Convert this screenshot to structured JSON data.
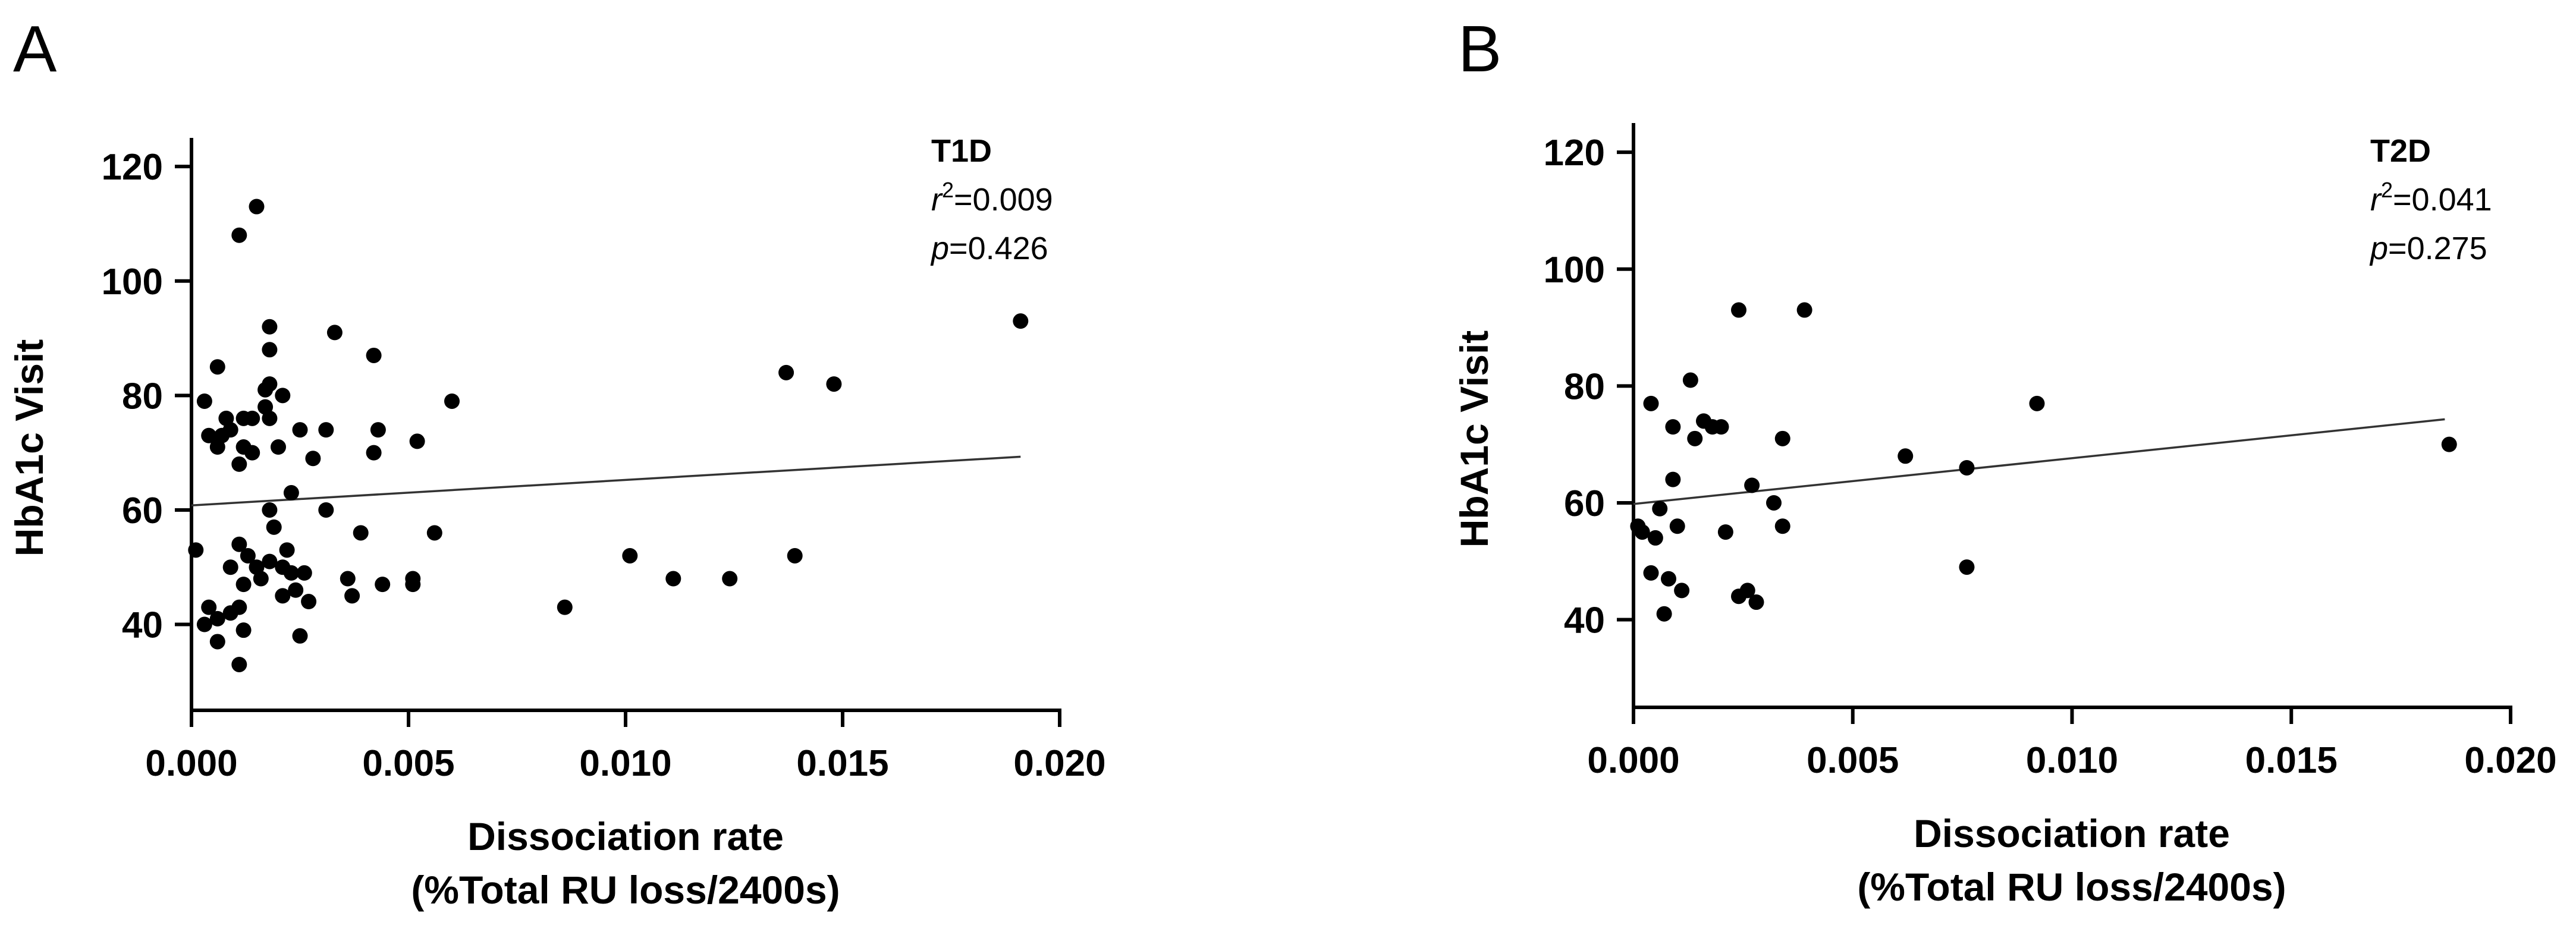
{
  "chart_data": [
    {
      "type": "scatter",
      "panel_label": "A",
      "xlabel_line1": "Dissociation rate",
      "xlabel_line2": "(%Total RU loss/2400s)",
      "ylabel": "HbA1c Visit",
      "xlim": [
        0.0,
        0.02
      ],
      "ylim": [
        25,
        125
      ],
      "xticks": [
        0.0,
        0.005,
        0.01,
        0.015,
        0.02
      ],
      "xtick_labels": [
        "0.000",
        "0.005",
        "0.010",
        "0.015",
        "0.020"
      ],
      "yticks": [
        40,
        60,
        80,
        100,
        120
      ],
      "ytick_labels": [
        "40",
        "60",
        "80",
        "100",
        "120"
      ],
      "annotation": {
        "title": "T1D",
        "r2_prefix": "r",
        "r2_value": "=0.009",
        "p_prefix": "p",
        "p_value": "=0.426"
      },
      "regression": {
        "x0": 0.0,
        "y0": 60.8,
        "x1": 0.0191,
        "y1": 69.3
      },
      "points": [
        [
          0.0015,
          113
        ],
        [
          0.0011,
          108
        ],
        [
          0.0018,
          92
        ],
        [
          0.0033,
          91
        ],
        [
          0.0042,
          87
        ],
        [
          0.0018,
          88
        ],
        [
          0.0006,
          85
        ],
        [
          0.0018,
          82
        ],
        [
          0.0017,
          81
        ],
        [
          0.0021,
          80
        ],
        [
          0.0003,
          79
        ],
        [
          0.0017,
          78
        ],
        [
          0.006,
          79
        ],
        [
          0.0008,
          76
        ],
        [
          0.0012,
          76
        ],
        [
          0.0014,
          76
        ],
        [
          0.0018,
          76
        ],
        [
          0.0025,
          74
        ],
        [
          0.0031,
          74
        ],
        [
          0.0043,
          74
        ],
        [
          0.0004,
          73
        ],
        [
          0.0007,
          73
        ],
        [
          0.0009,
          74
        ],
        [
          0.0006,
          71
        ],
        [
          0.0012,
          71
        ],
        [
          0.002,
          71
        ],
        [
          0.0052,
          72
        ],
        [
          0.0011,
          68
        ],
        [
          0.0014,
          70
        ],
        [
          0.0028,
          69
        ],
        [
          0.0042,
          70
        ],
        [
          0.0023,
          63
        ],
        [
          0.0018,
          60
        ],
        [
          0.0031,
          60
        ],
        [
          0.0019,
          57
        ],
        [
          0.0056,
          56
        ],
        [
          0.0039,
          56
        ],
        [
          0.0001,
          53
        ],
        [
          0.0011,
          54
        ],
        [
          0.0013,
          52
        ],
        [
          0.0018,
          51
        ],
        [
          0.0022,
          53
        ],
        [
          0.0015,
          50
        ],
        [
          0.0021,
          50
        ],
        [
          0.0023,
          49
        ],
        [
          0.0026,
          49
        ],
        [
          0.0009,
          50
        ],
        [
          0.0012,
          47
        ],
        [
          0.0016,
          48
        ],
        [
          0.0036,
          48
        ],
        [
          0.0044,
          47
        ],
        [
          0.0051,
          48
        ],
        [
          0.0051,
          47
        ],
        [
          0.0021,
          45
        ],
        [
          0.0024,
          46
        ],
        [
          0.0027,
          44
        ],
        [
          0.0037,
          45
        ],
        [
          0.0011,
          43
        ],
        [
          0.0004,
          43
        ],
        [
          0.0006,
          41
        ],
        [
          0.0009,
          42
        ],
        [
          0.0003,
          40
        ],
        [
          0.0012,
          39
        ],
        [
          0.0025,
          38
        ],
        [
          0.0006,
          37
        ],
        [
          0.0011,
          33
        ],
        [
          0.0086,
          43
        ],
        [
          0.0101,
          52
        ],
        [
          0.0111,
          48
        ],
        [
          0.0124,
          48
        ],
        [
          0.0139,
          52
        ],
        [
          0.0137,
          84
        ],
        [
          0.0148,
          82
        ],
        [
          0.0191,
          93
        ]
      ]
    },
    {
      "type": "scatter",
      "panel_label": "B",
      "xlabel_line1": "Dissociation rate",
      "xlabel_line2": "(%Total RU loss/2400s)",
      "ylabel": "HbA1c Visit",
      "xlim": [
        0.0,
        0.02
      ],
      "ylim": [
        25,
        125
      ],
      "xticks": [
        0.0,
        0.005,
        0.01,
        0.015,
        0.02
      ],
      "xtick_labels": [
        "0.000",
        "0.005",
        "0.010",
        "0.015",
        "0.020"
      ],
      "yticks": [
        40,
        60,
        80,
        100,
        120
      ],
      "ytick_labels": [
        "40",
        "60",
        "80",
        "100",
        "120"
      ],
      "annotation": {
        "title": "T2D",
        "r2_prefix": "r",
        "r2_value": "=0.041",
        "p_prefix": "p",
        "p_value": "=0.275"
      },
      "regression": {
        "x0": 0.0,
        "y0": 59.8,
        "x1": 0.0185,
        "y1": 74.3
      },
      "points": [
        [
          0.0024,
          93
        ],
        [
          0.0039,
          93
        ],
        [
          0.0013,
          81
        ],
        [
          0.0004,
          77
        ],
        [
          0.0092,
          77
        ],
        [
          0.0016,
          74
        ],
        [
          0.0009,
          73
        ],
        [
          0.002,
          73
        ],
        [
          0.0014,
          71
        ],
        [
          0.0034,
          71
        ],
        [
          0.0018,
          73
        ],
        [
          0.0186,
          70
        ],
        [
          0.0062,
          68
        ],
        [
          0.0076,
          66
        ],
        [
          0.0009,
          64
        ],
        [
          0.0027,
          63
        ],
        [
          0.0032,
          60
        ],
        [
          0.0006,
          59
        ],
        [
          0.0001,
          56
        ],
        [
          0.0002,
          55
        ],
        [
          0.0005,
          54
        ],
        [
          0.001,
          56
        ],
        [
          0.0021,
          55
        ],
        [
          0.0034,
          56
        ],
        [
          0.0004,
          48
        ],
        [
          0.0008,
          47
        ],
        [
          0.0011,
          45
        ],
        [
          0.0024,
          44
        ],
        [
          0.0026,
          45
        ],
        [
          0.0028,
          43
        ],
        [
          0.0007,
          41
        ],
        [
          0.0076,
          49
        ]
      ]
    }
  ]
}
